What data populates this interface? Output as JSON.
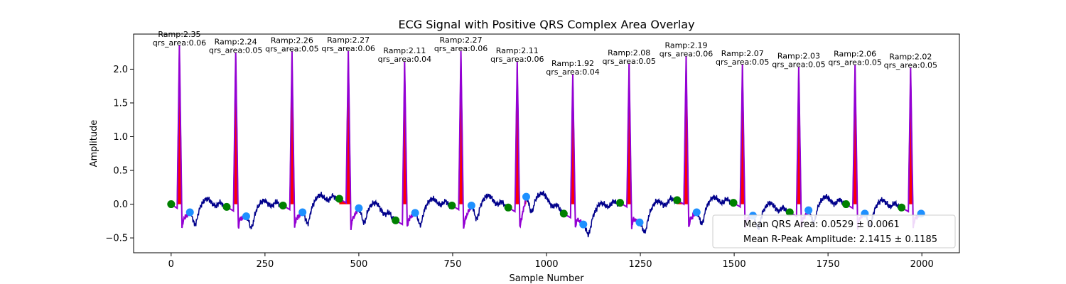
{
  "chart_data": {
    "type": "line",
    "title": "ECG Signal with Positive QRS Complex Area Overlay",
    "xlabel": "Sample Number",
    "ylabel": "Amplitude",
    "xlim": [
      -100,
      2100
    ],
    "ylim": [
      -0.72,
      2.52
    ],
    "xticks": [
      0,
      250,
      500,
      750,
      1000,
      1250,
      1500,
      1750,
      2000
    ],
    "yticks": [
      -0.5,
      0.0,
      0.5,
      1.0,
      1.5,
      2.0
    ],
    "colors": {
      "signal": "#00008b",
      "qrs": "#9400d3",
      "area": "#ff0000",
      "onset": "#008000",
      "offset": "#1e90ff"
    },
    "beats": [
      {
        "r": 22,
        "ramp": 2.35,
        "area": 0.06,
        "ramp_label": "Ramp:2.35",
        "area_label": "qrs_area:0.06",
        "onset": [
          0,
          0.0
        ],
        "offset": [
          50,
          -0.12
        ]
      },
      {
        "r": 172,
        "ramp": 2.24,
        "area": 0.05,
        "ramp_label": "Ramp:2.24",
        "area_label": "qrs_area:0.05",
        "onset": [
          148,
          -0.04
        ],
        "offset": [
          200,
          -0.18
        ]
      },
      {
        "r": 322,
        "ramp": 2.26,
        "area": 0.05,
        "ramp_label": "Ramp:2.26",
        "area_label": "qrs_area:0.05",
        "onset": [
          298,
          -0.02
        ],
        "offset": [
          350,
          -0.12
        ]
      },
      {
        "r": 472,
        "ramp": 2.27,
        "area": 0.06,
        "ramp_label": "Ramp:2.27",
        "area_label": "qrs_area:0.06",
        "onset": [
          448,
          0.08
        ],
        "offset": [
          500,
          -0.06
        ]
      },
      {
        "r": 622,
        "ramp": 2.11,
        "area": 0.04,
        "ramp_label": "Ramp:2.11",
        "area_label": "qrs_area:0.04",
        "onset": [
          598,
          -0.24
        ],
        "offset": [
          650,
          -0.13
        ]
      },
      {
        "r": 772,
        "ramp": 2.27,
        "area": 0.06,
        "ramp_label": "Ramp:2.27",
        "area_label": "qrs_area:0.06",
        "onset": [
          748,
          -0.02
        ],
        "offset": [
          800,
          -0.02
        ]
      },
      {
        "r": 922,
        "ramp": 2.11,
        "area": 0.06,
        "ramp_label": "Ramp:2.11",
        "area_label": "qrs_area:0.06",
        "onset": [
          898,
          -0.05
        ],
        "offset": [
          946,
          0.11
        ]
      },
      {
        "r": 1070,
        "ramp": 1.92,
        "area": 0.04,
        "ramp_label": "Ramp:1.92",
        "area_label": "qrs_area:0.04",
        "onset": [
          1046,
          -0.14
        ],
        "offset": [
          1098,
          -0.3
        ]
      },
      {
        "r": 1220,
        "ramp": 2.08,
        "area": 0.05,
        "ramp_label": "Ramp:2.08",
        "area_label": "qrs_area:0.05",
        "onset": [
          1196,
          0.02
        ],
        "offset": [
          1248,
          -0.27
        ]
      },
      {
        "r": 1372,
        "ramp": 2.19,
        "area": 0.06,
        "ramp_label": "Ramp:2.19",
        "area_label": "qrs_area:0.06",
        "onset": [
          1348,
          0.06
        ],
        "offset": [
          1400,
          -0.12
        ]
      },
      {
        "r": 1522,
        "ramp": 2.07,
        "area": 0.05,
        "ramp_label": "Ramp:2.07",
        "area_label": "qrs_area:0.05",
        "onset": [
          1498,
          0.02
        ],
        "offset": [
          1550,
          -0.17
        ]
      },
      {
        "r": 1672,
        "ramp": 2.03,
        "area": 0.05,
        "ramp_label": "Ramp:2.03",
        "area_label": "qrs_area:0.05",
        "onset": [
          1648,
          -0.12
        ],
        "offset": [
          1698,
          -0.09
        ]
      },
      {
        "r": 1822,
        "ramp": 2.06,
        "area": 0.05,
        "ramp_label": "Ramp:2.06",
        "area_label": "qrs_area:0.05",
        "onset": [
          1798,
          0.0
        ],
        "offset": [
          1848,
          -0.14
        ]
      },
      {
        "r": 1970,
        "ramp": 2.02,
        "area": 0.05,
        "ramp_label": "Ramp:2.02",
        "area_label": "qrs_area:0.05",
        "onset": [
          1946,
          -0.05
        ],
        "offset": [
          1998,
          -0.14
        ]
      }
    ],
    "legend": {
      "placement": "lower-right",
      "entries": [
        "Mean QRS Area: 0.0529 ± 0.0061",
        "Mean R-Peak Amplitude: 2.1415 ± 0.1185"
      ]
    }
  }
}
